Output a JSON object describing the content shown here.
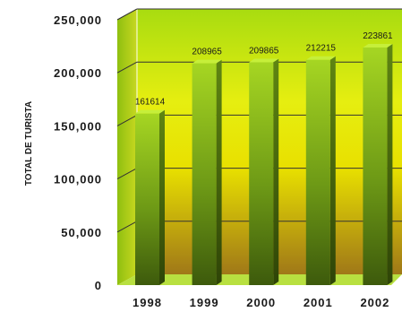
{
  "chart_data": {
    "type": "bar",
    "title": "",
    "xlabel": "",
    "ylabel": "TOTAL DE TURISTA",
    "categories": [
      "1998",
      "1999",
      "2000",
      "2001",
      "2002"
    ],
    "values": [
      161614,
      208965,
      209865,
      212215,
      223861
    ],
    "data_labels": [
      "161614",
      "208965",
      "209865",
      "212215",
      "223861"
    ],
    "ylim": [
      0,
      250000
    ],
    "yticks": [
      0,
      50000,
      100000,
      150000,
      200000,
      250000
    ],
    "ytick_labels": [
      "0",
      "50,000",
      "100,000",
      "150,000",
      "200,000",
      "250,000"
    ],
    "grid": true,
    "legend": "none",
    "three_d": true,
    "colors": {
      "bar_top": "#a6d622",
      "bar_bottom": "#3d5a0c",
      "bar_side": "#2e4407",
      "bar_cap": "#c6ef3a",
      "background_top": "#a8dc10",
      "background_bottom": "#a07818",
      "floor": "#b8e040",
      "gridline": "#333333"
    }
  }
}
